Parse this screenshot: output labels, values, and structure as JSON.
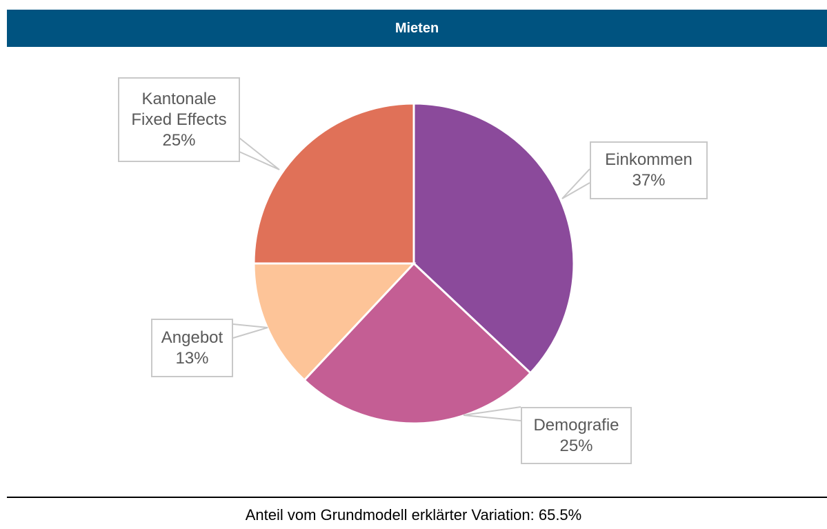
{
  "chart_data": {
    "type": "pie",
    "title": "Mieten",
    "categories": [
      "Einkommen",
      "Demografie",
      "Angebot",
      "Kantonale Fixed Effects"
    ],
    "values": [
      37,
      25,
      13,
      25
    ],
    "value_labels": [
      "37%",
      "25%",
      "13%",
      "25%"
    ],
    "colors": [
      "#8b4a9b",
      "#c45e94",
      "#fdc498",
      "#e07158"
    ],
    "footer": "Anteil vom Grundmodell erklärter Variation: 65.5%"
  }
}
